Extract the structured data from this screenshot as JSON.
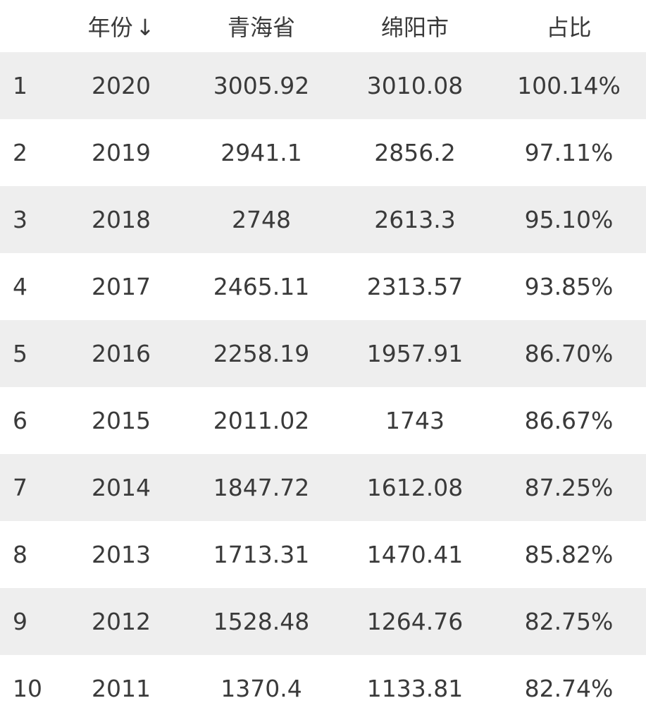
{
  "table": {
    "headers": {
      "index": "",
      "year": "年份",
      "sort_indicator": "↓",
      "qinghai": "青海省",
      "mianyang": "绵阳市",
      "ratio": "占比"
    },
    "rows": [
      {
        "index": "1",
        "year": "2020",
        "qinghai": "3005.92",
        "mianyang": "3010.08",
        "ratio": "100.14%"
      },
      {
        "index": "2",
        "year": "2019",
        "qinghai": "2941.1",
        "mianyang": "2856.2",
        "ratio": "97.11%"
      },
      {
        "index": "3",
        "year": "2018",
        "qinghai": "2748",
        "mianyang": "2613.3",
        "ratio": "95.10%"
      },
      {
        "index": "4",
        "year": "2017",
        "qinghai": "2465.11",
        "mianyang": "2313.57",
        "ratio": "93.85%"
      },
      {
        "index": "5",
        "year": "2016",
        "qinghai": "2258.19",
        "mianyang": "1957.91",
        "ratio": "86.70%"
      },
      {
        "index": "6",
        "year": "2015",
        "qinghai": "2011.02",
        "mianyang": "1743",
        "ratio": "86.67%"
      },
      {
        "index": "7",
        "year": "2014",
        "qinghai": "1847.72",
        "mianyang": "1612.08",
        "ratio": "87.25%"
      },
      {
        "index": "8",
        "year": "2013",
        "qinghai": "1713.31",
        "mianyang": "1470.41",
        "ratio": "85.82%"
      },
      {
        "index": "9",
        "year": "2012",
        "qinghai": "1528.48",
        "mianyang": "1264.76",
        "ratio": "82.75%"
      },
      {
        "index": "10",
        "year": "2011",
        "qinghai": "1370.4",
        "mianyang": "1133.81",
        "ratio": "82.74%"
      }
    ]
  },
  "colors": {
    "stripe": "#eeeeee",
    "text": "#3a3a3a",
    "background": "#ffffff"
  }
}
